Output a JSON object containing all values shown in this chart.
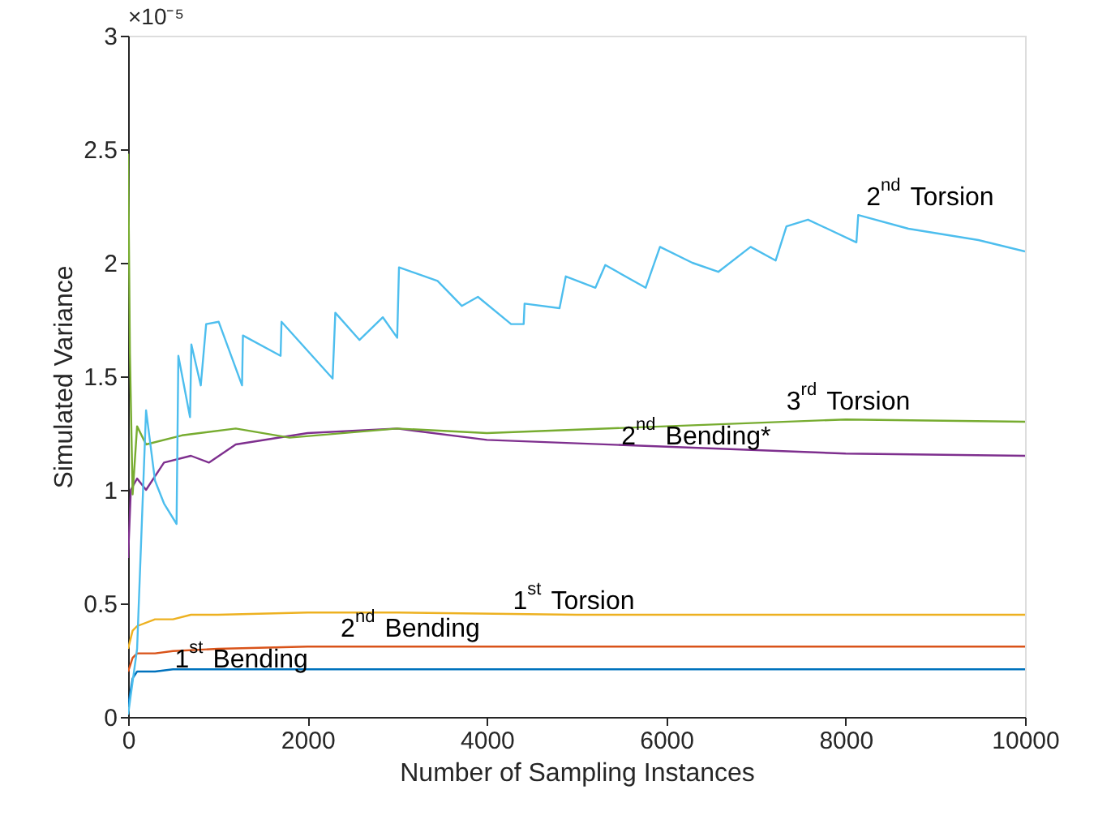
{
  "chart_data": {
    "type": "line",
    "xlabel": "Number of Sampling Instances",
    "ylabel": "Simulated Variance",
    "annotations": [
      "×10⁻⁵"
    ],
    "xlim": [
      0,
      10000
    ],
    "xticks": [
      0,
      2000,
      4000,
      6000,
      8000,
      10000
    ],
    "ylim": [
      0,
      3
    ],
    "yticks": [
      0,
      0.5,
      1,
      1.5,
      2,
      2.5,
      3
    ],
    "grid": false,
    "series": [
      {
        "name": "1$^{st}$ Bending",
        "color": "#0072bd",
        "x": [
          0,
          50,
          100,
          300,
          500,
          1000,
          2000,
          4000,
          6000,
          8000,
          10000
        ],
        "values": [
          0.05,
          0.17,
          0.2,
          0.2,
          0.21,
          0.21,
          0.21,
          0.21,
          0.21,
          0.21,
          0.21
        ]
      },
      {
        "name": "2$^{nd}$ Bending",
        "color": "#d95319",
        "x": [
          0,
          50,
          100,
          300,
          500,
          1000,
          2000,
          4000,
          6000,
          8000,
          10000
        ],
        "values": [
          0.2,
          0.26,
          0.28,
          0.28,
          0.29,
          0.3,
          0.31,
          0.31,
          0.31,
          0.31,
          0.31
        ]
      },
      {
        "name": "1$^{st}$ Torsion",
        "color": "#edb120",
        "x": [
          0,
          50,
          100,
          300,
          500,
          700,
          1000,
          2000,
          3000,
          5000,
          7000,
          10000
        ],
        "values": [
          0.3,
          0.38,
          0.4,
          0.43,
          0.43,
          0.45,
          0.45,
          0.46,
          0.46,
          0.45,
          0.45,
          0.45
        ]
      },
      {
        "name": "2$^{nd}$ Bending*",
        "color": "#7e2f8e",
        "x": [
          0,
          30,
          100,
          200,
          400,
          700,
          900,
          1200,
          2000,
          3000,
          4000,
          6000,
          8000,
          10000
        ],
        "values": [
          0.7,
          1.0,
          1.05,
          1.0,
          1.12,
          1.15,
          1.12,
          1.2,
          1.25,
          1.27,
          1.22,
          1.19,
          1.16,
          1.15
        ]
      },
      {
        "name": "3$^{rd}$ Torsion",
        "color": "#77ac30",
        "x": [
          0,
          20,
          50,
          100,
          200,
          600,
          1200,
          1800,
          3000,
          4000,
          6000,
          8000,
          10000
        ],
        "values": [
          2.48,
          1.6,
          0.98,
          1.28,
          1.2,
          1.24,
          1.27,
          1.23,
          1.27,
          1.25,
          1.28,
          1.31,
          1.3
        ]
      },
      {
        "name": "2$^{nd}$ Torsion",
        "color": "#4dbeee",
        "x": [
          0,
          100,
          200,
          300,
          400,
          540,
          560,
          690,
          705,
          810,
          870,
          1010,
          1270,
          1280,
          1700,
          1710,
          2280,
          2310,
          2580,
          2840,
          3000,
          3020,
          3450,
          3720,
          3900,
          4270,
          4410,
          4420,
          4810,
          4880,
          5210,
          5320,
          5770,
          5930,
          6290,
          6580,
          6940,
          7220,
          7340,
          7580,
          8120,
          8140,
          8700,
          9480,
          10000
        ],
        "values": [
          0.01,
          0.3,
          1.35,
          1.04,
          0.94,
          0.85,
          1.59,
          1.32,
          1.64,
          1.46,
          1.73,
          1.74,
          1.46,
          1.68,
          1.59,
          1.74,
          1.49,
          1.78,
          1.66,
          1.76,
          1.67,
          1.98,
          1.92,
          1.81,
          1.85,
          1.73,
          1.73,
          1.82,
          1.8,
          1.94,
          1.89,
          1.99,
          1.89,
          2.07,
          2.0,
          1.96,
          2.07,
          2.01,
          2.16,
          2.19,
          2.09,
          2.21,
          2.15,
          2.1,
          2.05
        ]
      }
    ]
  }
}
